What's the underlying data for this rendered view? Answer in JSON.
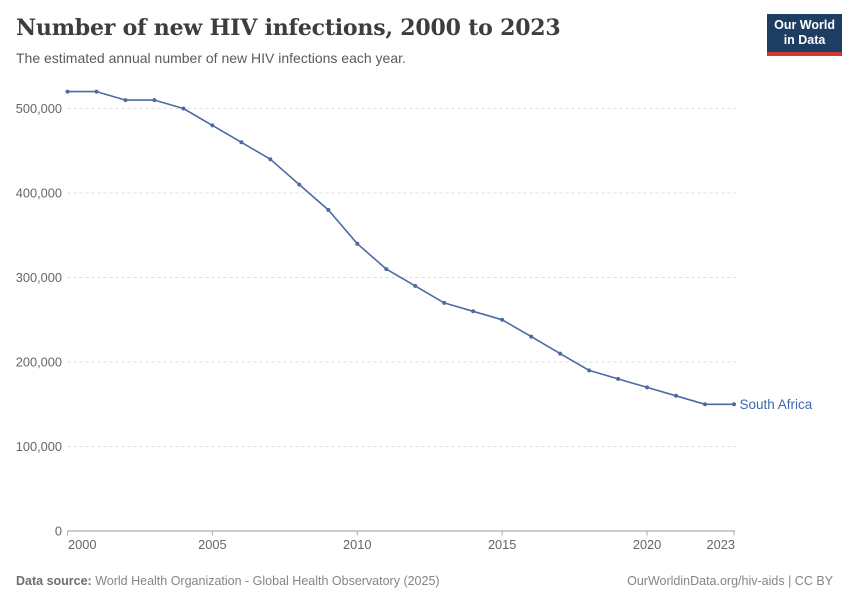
{
  "header": {
    "title": "Number of new HIV infections, 2000 to 2023",
    "subtitle": "The estimated annual number of new HIV infections each year.",
    "logo": {
      "line1": "Our World",
      "line2": "in Data",
      "bg_color": "#1d3d63",
      "bar_color": "#cf3a30"
    }
  },
  "chart_data": {
    "type": "line",
    "title": "Number of new HIV infections, 2000 to 2023",
    "xlabel": "",
    "ylabel": "",
    "x": [
      2000,
      2001,
      2002,
      2003,
      2004,
      2005,
      2006,
      2007,
      2008,
      2009,
      2010,
      2011,
      2012,
      2013,
      2014,
      2015,
      2016,
      2017,
      2018,
      2019,
      2020,
      2021,
      2022,
      2023
    ],
    "series": [
      {
        "name": "South Africa",
        "color": "#4c6ba5",
        "label_color": "#3d69ad",
        "values": [
          520000,
          520000,
          510000,
          510000,
          500000,
          480000,
          460000,
          440000,
          410000,
          380000,
          340000,
          310000,
          290000,
          270000,
          260000,
          250000,
          230000,
          210000,
          190000,
          180000,
          170000,
          160000,
          150000,
          150000
        ]
      }
    ],
    "x_ticks": [
      2000,
      2005,
      2010,
      2015,
      2020,
      2023
    ],
    "y_ticks": [
      0,
      100000,
      200000,
      300000,
      400000,
      500000
    ],
    "xlim": [
      2000,
      2023
    ],
    "ylim": [
      0,
      500000
    ],
    "grid": "horizontal dashed",
    "legend_position": "end-of-line label",
    "colors": {
      "grid": "#dedede",
      "axis": "#999999",
      "tick_mark": "#b0b0b0",
      "tick_label": "#666666"
    }
  },
  "footer": {
    "datasource_label": "Data source:",
    "datasource_text": " World Health Organization - Global Health Observatory (2025)",
    "credit": "OurWorldinData.org/hiv-aids | CC BY"
  }
}
